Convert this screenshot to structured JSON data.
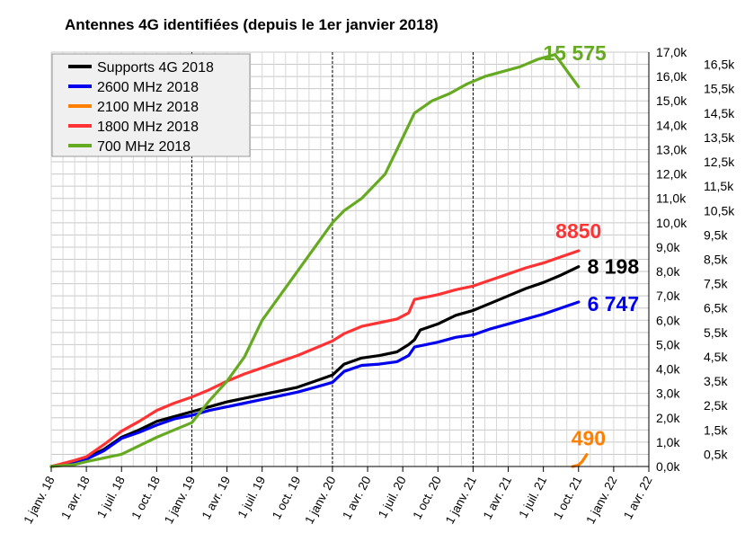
{
  "chart_data": {
    "type": "line",
    "title": "Antennes 4G identifiées (depuis le 1er janvier 2018)",
    "xlabel": "",
    "ylabel": "",
    "x_ticks": [
      "1 janv. 18",
      "1 avr. 18",
      "1 juil. 18",
      "1 oct. 18",
      "1 janv. 19",
      "1 avr. 19",
      "1 juil. 19",
      "1 oct. 19",
      "1 janv. 20",
      "1 avr. 20",
      "1 juil. 20",
      "1 oct. 20",
      "1 janv. 21",
      "1 avr. 21",
      "1 juil. 21",
      "1 oct. 21",
      "1 janv. 22",
      "1 avr. 22"
    ],
    "x_tick_months": [
      0,
      3,
      6,
      9,
      12,
      15,
      18,
      21,
      24,
      27,
      30,
      33,
      36,
      39,
      42,
      45,
      48,
      51
    ],
    "year_marker_months": [
      12,
      24,
      36
    ],
    "y_left": {
      "min": 0,
      "max": 17000,
      "step": 1000,
      "ticks": [
        "0,0k",
        "1,0k",
        "2,0k",
        "3,0k",
        "4,0k",
        "5,0k",
        "6,0k",
        "7,0k",
        "8,0k",
        "9,0k",
        "10,0k",
        "11,0k",
        "12,0k",
        "13,0k",
        "14,0k",
        "15,0k",
        "16,0k",
        "17,0k"
      ]
    },
    "y_right": {
      "min": 0,
      "max": 17000,
      "ticks": [
        "0,5k",
        "1,5k",
        "2,5k",
        "3,5k",
        "4,5k",
        "5,5k",
        "6,5k",
        "7,5k",
        "8,5k",
        "9,5k",
        "10,5k",
        "11,5k",
        "12,5k",
        "13,5k",
        "14,5k",
        "15,5k",
        "16,5k"
      ],
      "tick_values": [
        500,
        1500,
        2500,
        3500,
        4500,
        5500,
        6500,
        7500,
        8500,
        9500,
        10500,
        11500,
        12500,
        13500,
        14500,
        15500,
        16500
      ]
    },
    "grid": true,
    "legend_position": "top-left",
    "series": [
      {
        "name": "Supports 4G 2018",
        "color": "#000000",
        "end_label": "8 198",
        "points": [
          [
            0,
            0
          ],
          [
            2,
            200
          ],
          [
            3,
            350
          ],
          [
            4.5,
            700
          ],
          [
            6,
            1200
          ],
          [
            7.5,
            1500
          ],
          [
            9,
            1850
          ],
          [
            10.5,
            2050
          ],
          [
            12,
            2250
          ],
          [
            13.5,
            2450
          ],
          [
            15,
            2650
          ],
          [
            16.5,
            2800
          ],
          [
            18,
            2950
          ],
          [
            19.5,
            3100
          ],
          [
            21,
            3250
          ],
          [
            22.5,
            3500
          ],
          [
            24,
            3750
          ],
          [
            25,
            4200
          ],
          [
            26.5,
            4450
          ],
          [
            28,
            4550
          ],
          [
            29.5,
            4700
          ],
          [
            30.5,
            5000
          ],
          [
            31,
            5200
          ],
          [
            31.5,
            5600
          ],
          [
            33,
            5850
          ],
          [
            34.5,
            6200
          ],
          [
            36,
            6400
          ],
          [
            37.5,
            6700
          ],
          [
            39,
            7000
          ],
          [
            40.5,
            7300
          ],
          [
            42,
            7550
          ],
          [
            43.5,
            7850
          ],
          [
            45,
            8198
          ]
        ]
      },
      {
        "name": "2600 MHz 2018",
        "color": "#0000ee",
        "end_label": "6 747",
        "points": [
          [
            0,
            0
          ],
          [
            2,
            200
          ],
          [
            3,
            300
          ],
          [
            4.5,
            650
          ],
          [
            6,
            1150
          ],
          [
            7.5,
            1400
          ],
          [
            9,
            1700
          ],
          [
            10.5,
            1950
          ],
          [
            12,
            2100
          ],
          [
            13.5,
            2300
          ],
          [
            15,
            2450
          ],
          [
            16.5,
            2600
          ],
          [
            18,
            2750
          ],
          [
            19.5,
            2900
          ],
          [
            21,
            3050
          ],
          [
            22.5,
            3250
          ],
          [
            24,
            3450
          ],
          [
            25,
            3900
          ],
          [
            26.5,
            4150
          ],
          [
            28,
            4200
          ],
          [
            29.5,
            4300
          ],
          [
            30.5,
            4550
          ],
          [
            31,
            4900
          ],
          [
            33,
            5100
          ],
          [
            34.5,
            5300
          ],
          [
            36,
            5400
          ],
          [
            37.5,
            5650
          ],
          [
            39,
            5850
          ],
          [
            40.5,
            6050
          ],
          [
            42,
            6250
          ],
          [
            43.5,
            6500
          ],
          [
            45,
            6747
          ]
        ]
      },
      {
        "name": "2100 MHz 2018",
        "color": "#ff7f00",
        "end_label": "490",
        "points": [
          [
            44.5,
            0
          ],
          [
            45,
            60
          ],
          [
            45.3,
            200
          ],
          [
            45.7,
            490
          ]
        ]
      },
      {
        "name": "1800 MHz 2018",
        "color": "#ff3333",
        "end_label": "8850",
        "points": [
          [
            0,
            0
          ],
          [
            2,
            250
          ],
          [
            3,
            400
          ],
          [
            4.5,
            900
          ],
          [
            6,
            1450
          ],
          [
            7.5,
            1850
          ],
          [
            9,
            2300
          ],
          [
            10.5,
            2600
          ],
          [
            12,
            2850
          ],
          [
            13.5,
            3150
          ],
          [
            15,
            3500
          ],
          [
            16.5,
            3800
          ],
          [
            18,
            4050
          ],
          [
            19.5,
            4300
          ],
          [
            21,
            4550
          ],
          [
            22.5,
            4850
          ],
          [
            24,
            5150
          ],
          [
            25,
            5450
          ],
          [
            26.5,
            5750
          ],
          [
            28,
            5900
          ],
          [
            29.5,
            6050
          ],
          [
            30.5,
            6300
          ],
          [
            31,
            6850
          ],
          [
            33,
            7050
          ],
          [
            34.5,
            7250
          ],
          [
            36,
            7400
          ],
          [
            37.5,
            7650
          ],
          [
            39,
            7900
          ],
          [
            40.5,
            8150
          ],
          [
            42,
            8350
          ],
          [
            43.5,
            8600
          ],
          [
            45,
            8850
          ]
        ]
      },
      {
        "name": "700 MHz 2018",
        "color": "#66aa22",
        "end_label": "15 575",
        "points": [
          [
            0,
            0
          ],
          [
            2,
            80
          ],
          [
            3,
            200
          ],
          [
            4.5,
            350
          ],
          [
            6,
            500
          ],
          [
            7.5,
            850
          ],
          [
            9,
            1200
          ],
          [
            10.5,
            1500
          ],
          [
            12,
            1800
          ],
          [
            13.5,
            2700
          ],
          [
            15,
            3500
          ],
          [
            16.5,
            4500
          ],
          [
            18,
            6000
          ],
          [
            19.5,
            7000
          ],
          [
            21,
            8000
          ],
          [
            22.5,
            9000
          ],
          [
            24,
            10000
          ],
          [
            25,
            10500
          ],
          [
            26.5,
            11000
          ],
          [
            27.5,
            11500
          ],
          [
            28.5,
            12000
          ],
          [
            29.5,
            13000
          ],
          [
            30.5,
            14000
          ],
          [
            31,
            14500
          ],
          [
            32.5,
            15000
          ],
          [
            34,
            15300
          ],
          [
            35.5,
            15700
          ],
          [
            37,
            16000
          ],
          [
            38.5,
            16200
          ],
          [
            40,
            16400
          ],
          [
            41.5,
            16700
          ],
          [
            43,
            16900
          ],
          [
            45,
            15575
          ]
        ]
      }
    ]
  }
}
